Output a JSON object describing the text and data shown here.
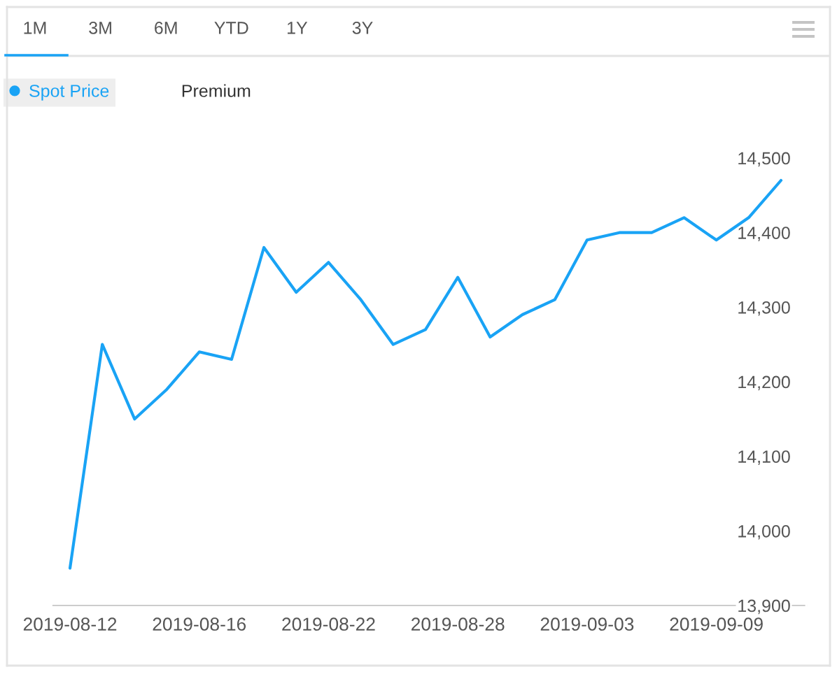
{
  "chart_data": {
    "type": "line",
    "categories": [
      "2019-08-12",
      null,
      null,
      null,
      "2019-08-16",
      null,
      null,
      null,
      "2019-08-22",
      null,
      null,
      null,
      "2019-08-28",
      null,
      null,
      null,
      "2019-09-03",
      null,
      null,
      null,
      "2019-09-09",
      null,
      null
    ],
    "series": [
      {
        "name": "Spot Price",
        "color": "#19a3f5",
        "values": [
          13950,
          14250,
          14150,
          14190,
          14240,
          14230,
          14380,
          14320,
          14360,
          14310,
          14250,
          14270,
          14340,
          14260,
          14290,
          14310,
          14390,
          14400,
          14400,
          14420,
          14390,
          14420,
          14470
        ]
      },
      {
        "name": "Premium",
        "values": [
          null,
          null,
          null,
          null,
          null,
          null,
          null,
          null,
          null,
          null,
          null,
          null,
          null,
          null,
          null,
          null,
          null,
          null,
          null,
          null,
          null,
          null,
          null
        ]
      }
    ],
    "ylim": [
      13900,
      14500
    ],
    "yticks": [
      {
        "value": 13900,
        "label": "13,900"
      },
      {
        "value": 14000,
        "label": "14,000"
      },
      {
        "value": 14100,
        "label": "14,100"
      },
      {
        "value": 14200,
        "label": "14,200"
      },
      {
        "value": 14300,
        "label": "14,300"
      },
      {
        "value": 14400,
        "label": "14,400"
      },
      {
        "value": 14500,
        "label": "14,500"
      }
    ],
    "grid": false,
    "legend": "top left",
    "annotations": [
      "1M",
      "3M",
      "6M",
      "YTD",
      "1Y",
      "3Y"
    ]
  }
}
